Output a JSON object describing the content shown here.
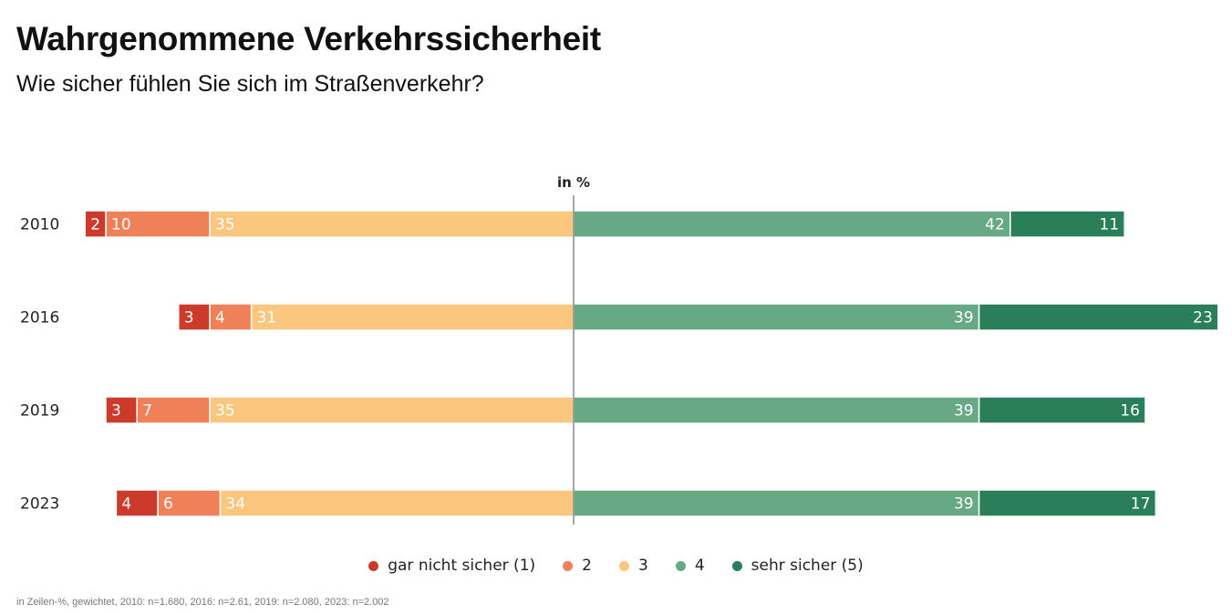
{
  "title": "Wahrgenommene Verkehrssicherheit",
  "subtitle": "Wie sicher fühlen Sie sich im Straßenverkehr?",
  "footnote": "in Zeilen-%, gewichtet, 2010: n=1.680, 2016: n=2.61, 2019: n=2.080, 2023: n=2.002",
  "chart_data": {
    "type": "bar",
    "orientation": "horizontal-diverging-stacked",
    "unit_label": "in %",
    "categories": [
      "2010",
      "2016",
      "2019",
      "2023"
    ],
    "series": [
      {
        "name": "gar nicht sicher (1)",
        "color": "#cc3a2b",
        "side": "negative",
        "values": [
          2,
          3,
          3,
          4
        ]
      },
      {
        "name": "2",
        "color": "#f08058",
        "side": "negative",
        "values": [
          10,
          4,
          7,
          6
        ]
      },
      {
        "name": "3",
        "color": "#fbc67e",
        "side": "negative",
        "values": [
          35,
          31,
          35,
          34
        ]
      },
      {
        "name": "4",
        "color": "#67a984",
        "side": "positive",
        "values": [
          42,
          39,
          39,
          39
        ]
      },
      {
        "name": "sehr sicher (5)",
        "color": "#2a7f5a",
        "side": "positive",
        "values": [
          11,
          23,
          16,
          17
        ]
      }
    ],
    "legend": {
      "placement": "bottom-center"
    },
    "grid": false
  }
}
